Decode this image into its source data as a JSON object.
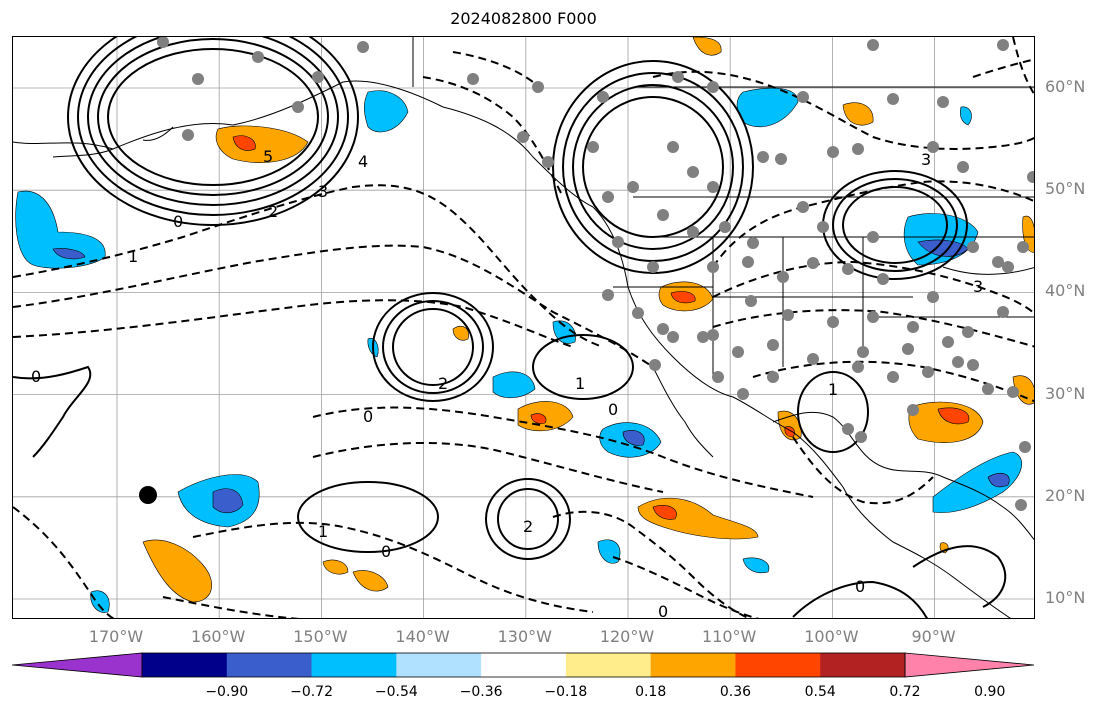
{
  "title": "2024082800 F000",
  "lat_labels": [
    {
      "label": "60°N",
      "value": 60
    },
    {
      "label": "50°N",
      "value": 50
    },
    {
      "label": "40°N",
      "value": 40
    },
    {
      "label": "30°N",
      "value": 30
    },
    {
      "label": "20°N",
      "value": 20
    },
    {
      "label": "10°N",
      "value": 10
    }
  ],
  "lon_labels": [
    {
      "label": "170°W",
      "value": -170
    },
    {
      "label": "160°W",
      "value": -160
    },
    {
      "label": "150°W",
      "value": -150
    },
    {
      "label": "140°W",
      "value": -140
    },
    {
      "label": "130°W",
      "value": -130
    },
    {
      "label": "120°W",
      "value": -120
    },
    {
      "label": "110°W",
      "value": -110
    },
    {
      "label": "100°W",
      "value": -100
    },
    {
      "label": "90°W",
      "value": -90
    }
  ],
  "colorbar": {
    "tick_labels": [
      "−0.90",
      "−0.72",
      "−0.54",
      "−0.36",
      "−0.18",
      "0.18",
      "0.36",
      "0.54",
      "0.72",
      "0.90"
    ],
    "colors": [
      "#9a32cd",
      "#00008b",
      "#3a5fcd",
      "#00bfff",
      "#b0e2ff",
      "#ffffff",
      "#ffec8b",
      "#ffa500",
      "#ff4500",
      "#b22222",
      "#ff82ab"
    ]
  },
  "contour_labels": [
    "0",
    "1",
    "2",
    "3",
    "4",
    "5"
  ],
  "domain": {
    "lon_min": -180,
    "lon_max": -80,
    "lat_min": 8,
    "lat_max": 65
  }
}
